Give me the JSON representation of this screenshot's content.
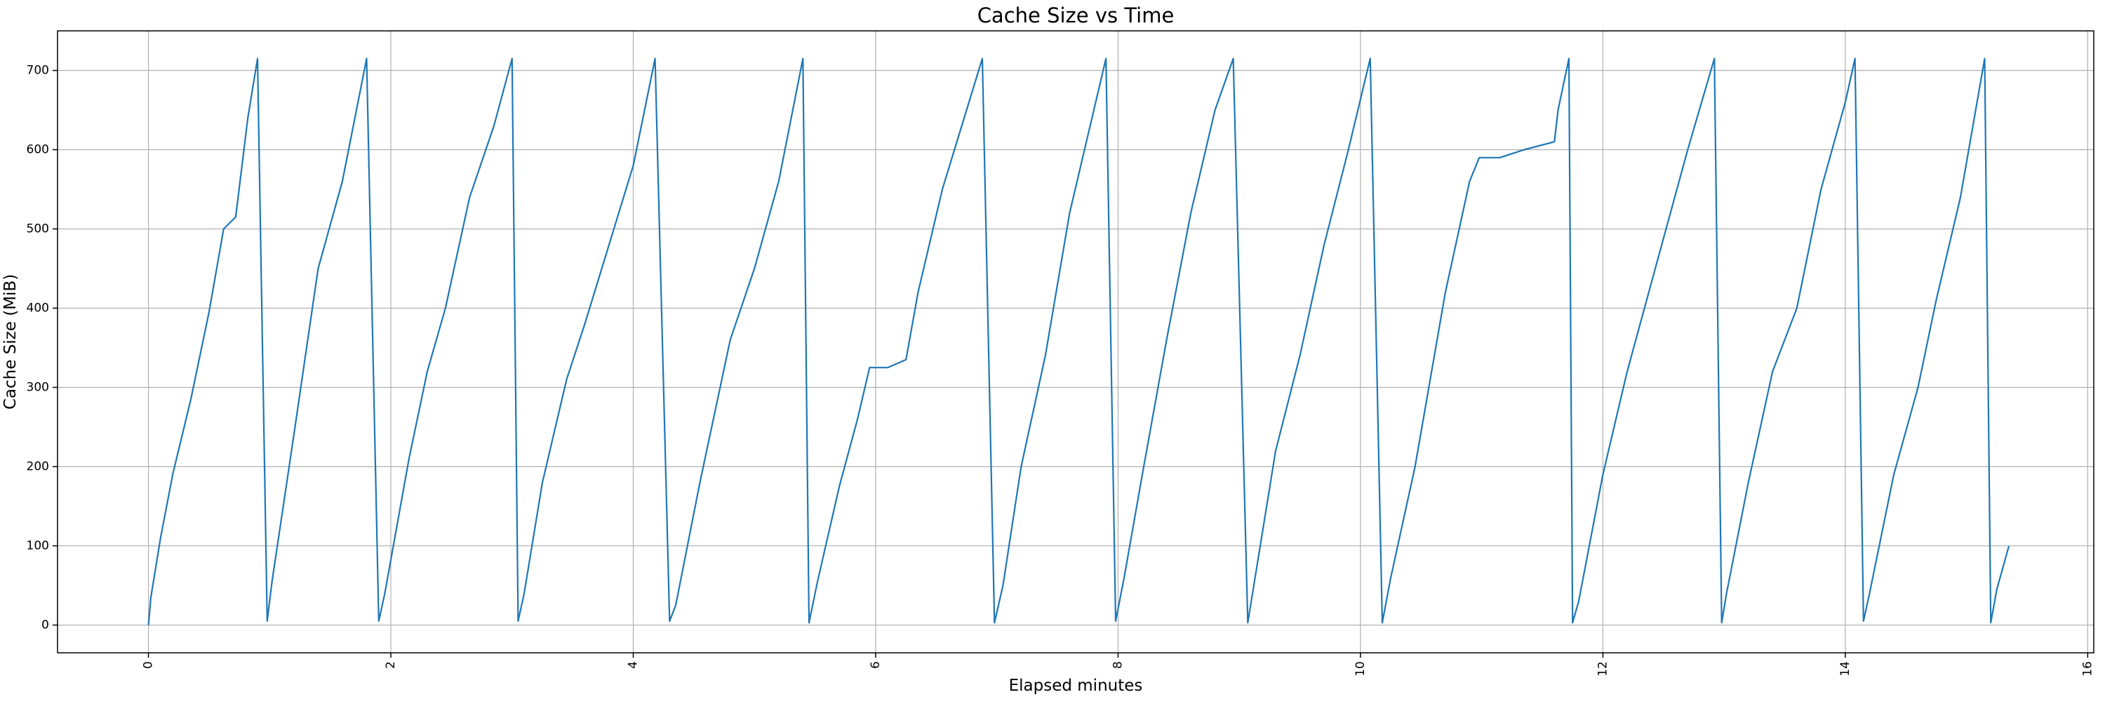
{
  "chart_data": {
    "type": "line",
    "title": "Cache Size vs Time",
    "xlabel": "Elapsed minutes",
    "ylabel": "Cache Size (MiB)",
    "xlim": [
      -0.75,
      16.05
    ],
    "ylim": [
      -35,
      750
    ],
    "xticks": [
      0,
      2,
      4,
      6,
      8,
      10,
      12,
      14,
      16
    ],
    "yticks": [
      0,
      100,
      200,
      300,
      400,
      500,
      600,
      700
    ],
    "grid": true,
    "legend": "none",
    "series_color": "#1f77b4",
    "series": [
      {
        "points": [
          [
            0.0,
            0
          ],
          [
            0.02,
            35
          ],
          [
            0.1,
            110
          ],
          [
            0.2,
            190
          ],
          [
            0.35,
            285
          ],
          [
            0.5,
            395
          ],
          [
            0.62,
            500
          ],
          [
            0.72,
            515
          ],
          [
            0.82,
            640
          ],
          [
            0.9,
            715
          ],
          [
            0.98,
            5
          ],
          [
            1.02,
            55
          ],
          [
            1.2,
            240
          ],
          [
            1.4,
            450
          ],
          [
            1.6,
            560
          ],
          [
            1.8,
            715
          ],
          [
            1.9,
            5
          ],
          [
            1.95,
            40
          ],
          [
            2.15,
            210
          ],
          [
            2.3,
            320
          ],
          [
            2.45,
            400
          ],
          [
            2.65,
            540
          ],
          [
            2.85,
            630
          ],
          [
            3.0,
            715
          ],
          [
            3.05,
            5
          ],
          [
            3.1,
            40
          ],
          [
            3.25,
            180
          ],
          [
            3.45,
            310
          ],
          [
            3.6,
            380
          ],
          [
            3.8,
            480
          ],
          [
            4.0,
            580
          ],
          [
            4.18,
            715
          ],
          [
            4.3,
            5
          ],
          [
            4.35,
            25
          ],
          [
            4.55,
            180
          ],
          [
            4.8,
            360
          ],
          [
            5.0,
            450
          ],
          [
            5.2,
            560
          ],
          [
            5.4,
            715
          ],
          [
            5.45,
            3
          ],
          [
            5.52,
            55
          ],
          [
            5.7,
            175
          ],
          [
            5.85,
            260
          ],
          [
            5.95,
            325
          ],
          [
            6.1,
            325
          ],
          [
            6.25,
            335
          ],
          [
            6.35,
            420
          ],
          [
            6.55,
            550
          ],
          [
            6.75,
            650
          ],
          [
            6.88,
            715
          ],
          [
            6.98,
            3
          ],
          [
            7.05,
            50
          ],
          [
            7.2,
            200
          ],
          [
            7.4,
            340
          ],
          [
            7.6,
            520
          ],
          [
            7.8,
            650
          ],
          [
            7.9,
            715
          ],
          [
            7.98,
            5
          ],
          [
            8.05,
            60
          ],
          [
            8.2,
            190
          ],
          [
            8.4,
            360
          ],
          [
            8.6,
            520
          ],
          [
            8.8,
            650
          ],
          [
            8.95,
            715
          ],
          [
            9.07,
            3
          ],
          [
            9.12,
            50
          ],
          [
            9.3,
            220
          ],
          [
            9.5,
            340
          ],
          [
            9.7,
            480
          ],
          [
            9.9,
            600
          ],
          [
            10.08,
            715
          ],
          [
            10.18,
            3
          ],
          [
            10.25,
            60
          ],
          [
            10.45,
            200
          ],
          [
            10.7,
            420
          ],
          [
            10.9,
            560
          ],
          [
            10.98,
            590
          ],
          [
            11.15,
            590
          ],
          [
            11.35,
            600
          ],
          [
            11.6,
            610
          ],
          [
            11.63,
            650
          ],
          [
            11.72,
            715
          ],
          [
            11.75,
            3
          ],
          [
            11.8,
            30
          ],
          [
            12.0,
            190
          ],
          [
            12.2,
            320
          ],
          [
            12.45,
            460
          ],
          [
            12.7,
            600
          ],
          [
            12.92,
            715
          ],
          [
            12.98,
            3
          ],
          [
            13.02,
            40
          ],
          [
            13.2,
            180
          ],
          [
            13.4,
            320
          ],
          [
            13.6,
            400
          ],
          [
            13.8,
            550
          ],
          [
            14.0,
            660
          ],
          [
            14.08,
            715
          ],
          [
            14.15,
            5
          ],
          [
            14.2,
            40
          ],
          [
            14.4,
            190
          ],
          [
            14.6,
            300
          ],
          [
            14.75,
            410
          ],
          [
            14.95,
            540
          ],
          [
            15.15,
            715
          ],
          [
            15.2,
            3
          ],
          [
            15.25,
            45
          ],
          [
            15.35,
            100
          ]
        ]
      }
    ]
  }
}
